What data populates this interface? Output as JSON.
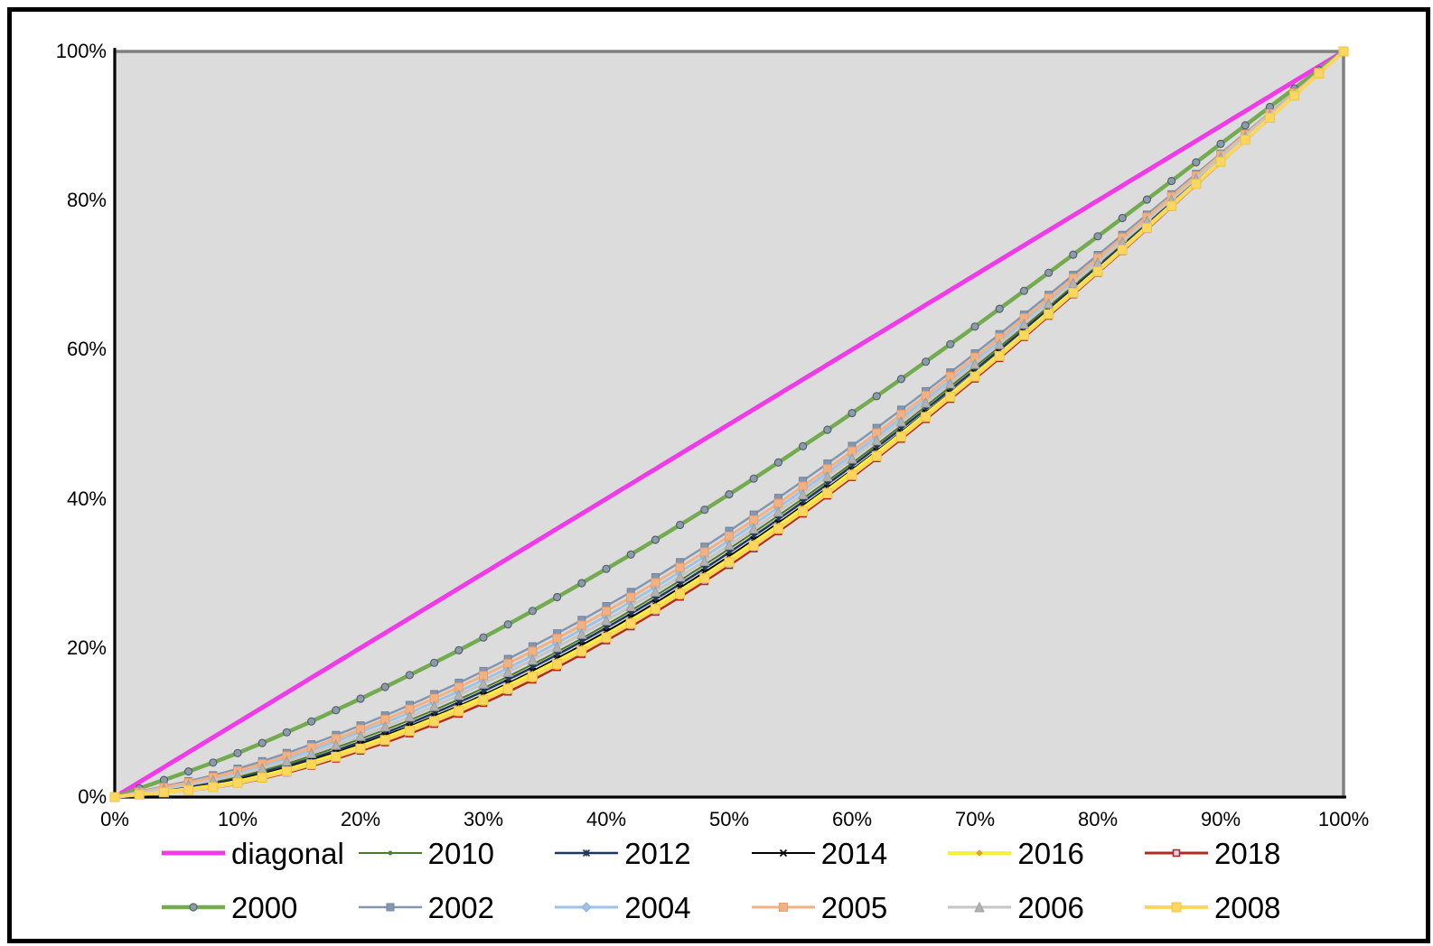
{
  "figure": {
    "background": "#ffffff",
    "outer_border_color": "#000000",
    "plot_background": "#DCDCDC",
    "plot_border_color": "#808080",
    "axis_line_color": "#000000"
  },
  "axes": {
    "x_tick_labels": [
      "0%",
      "10%",
      "20%",
      "30%",
      "40%",
      "50%",
      "60%",
      "70%",
      "80%",
      "90%",
      "100%"
    ],
    "y_tick_labels": [
      "0%",
      "20%",
      "40%",
      "60%",
      "80%",
      "100%"
    ]
  },
  "chart_data": {
    "type": "line",
    "title": "",
    "xlabel": "",
    "ylabel": "",
    "xlim": [
      0,
      100
    ],
    "ylim": [
      0,
      100
    ],
    "grid": false,
    "legend_position": "bottom",
    "x": [
      0,
      10,
      20,
      30,
      40,
      50,
      60,
      70,
      80,
      90,
      100
    ],
    "series": [
      {
        "name": "diagonal",
        "color": "#F03CE8",
        "line_width": 5,
        "marker": {
          "shape": "none",
          "fill": "",
          "stroke": "",
          "size": 0
        },
        "values": [
          0,
          10,
          20,
          30,
          40,
          50,
          60,
          70,
          80,
          90,
          100
        ]
      },
      {
        "name": "2010",
        "color": "#4E7A28",
        "line_width": 2,
        "marker": {
          "shape": "dot",
          "fill": "#538135",
          "stroke": "#3E5E1E",
          "size": 5
        },
        "values": [
          0,
          2.7,
          7.8,
          14.6,
          23.1,
          33.3,
          44.8,
          57.7,
          71.4,
          85.7,
          100
        ]
      },
      {
        "name": "2012",
        "color": "#20375C",
        "line_width": 2.5,
        "marker": {
          "shape": "star",
          "fill": "#20375C",
          "stroke": "#20375C",
          "size": 7
        },
        "values": [
          0,
          2.5,
          7.4,
          14.2,
          22.7,
          32.8,
          44.4,
          57.3,
          71.1,
          85.5,
          100
        ]
      },
      {
        "name": "2014",
        "color": "#000000",
        "line_width": 2,
        "marker": {
          "shape": "x",
          "fill": "#000000",
          "stroke": "#000000",
          "size": 7
        },
        "values": [
          0,
          2.3,
          7.1,
          13.7,
          22.2,
          32.3,
          43.9,
          56.9,
          70.9,
          85.4,
          100
        ]
      },
      {
        "name": "2016",
        "color": "#FAEF3E",
        "line_width": 4,
        "marker": {
          "shape": "diamond",
          "fill": "#E8A33D",
          "stroke": "#D99426",
          "size": 6
        },
        "values": [
          0,
          2.1,
          6.8,
          13.4,
          21.8,
          31.9,
          43.6,
          56.7,
          70.7,
          85.3,
          100
        ]
      },
      {
        "name": "2018",
        "color": "#B02B20",
        "line_width": 3,
        "marker": {
          "shape": "square-open",
          "fill": "#C9D9F0",
          "stroke": "#B02B20",
          "size": 7
        },
        "values": [
          0,
          1.8,
          6.2,
          12.6,
          21.0,
          31.1,
          42.9,
          56.1,
          70.3,
          85.1,
          100
        ]
      },
      {
        "name": "2000",
        "color": "#74AA50",
        "line_width": 4.5,
        "marker": {
          "shape": "circle",
          "fill": "#8C9BAA",
          "stroke": "#55616E",
          "size": 8
        },
        "values": [
          0,
          5.9,
          13.2,
          21.4,
          30.6,
          40.6,
          51.5,
          63.1,
          75.2,
          87.6,
          100
        ]
      },
      {
        "name": "2002",
        "color": "#8497B0",
        "line_width": 2.5,
        "marker": {
          "shape": "square",
          "fill": "#8497B0",
          "stroke": "#73849B",
          "size": 8
        },
        "values": [
          0,
          3.8,
          9.6,
          16.9,
          25.6,
          35.7,
          47.1,
          59.5,
          72.7,
          86.3,
          100
        ]
      },
      {
        "name": "2004",
        "color": "#9DC3E6",
        "line_width": 3,
        "marker": {
          "shape": "diamond",
          "fill": "#9DC3E6",
          "stroke": "#8AB2D8",
          "size": 10
        },
        "values": [
          0,
          3.2,
          8.7,
          15.7,
          24.3,
          34.4,
          45.9,
          58.5,
          72.0,
          86.0,
          100
        ]
      },
      {
        "name": "2005",
        "color": "#F2B183",
        "line_width": 3,
        "marker": {
          "shape": "square",
          "fill": "#F2B183",
          "stroke": "#E5A071",
          "size": 9
        },
        "values": [
          0,
          3.5,
          9.1,
          16.3,
          24.9,
          35.0,
          46.4,
          59.0,
          72.3,
          86.1,
          100
        ]
      },
      {
        "name": "2006",
        "color": "#C6C6C6",
        "line_width": 3,
        "marker": {
          "shape": "triangle",
          "fill": "#B3B3B3",
          "stroke": "#9E9E9E",
          "size": 10
        },
        "values": [
          0,
          3.0,
          8.2,
          15.2,
          23.7,
          33.8,
          45.4,
          58.1,
          71.7,
          85.8,
          100
        ]
      },
      {
        "name": "2008",
        "color": "#FCD75F",
        "line_width": 4,
        "marker": {
          "shape": "square",
          "fill": "#FCD75F",
          "stroke": "#EDC44A",
          "size": 10
        },
        "values": [
          0,
          1.9,
          6.5,
          13.0,
          21.4,
          31.5,
          43.2,
          56.4,
          70.5,
          85.2,
          100
        ]
      }
    ]
  },
  "legend": {
    "rows": [
      [
        "diagonal",
        "2010",
        "2012",
        "2014",
        "2016",
        "2018"
      ],
      [
        "2000",
        "2002",
        "2004",
        "2005",
        "2006",
        "2008"
      ]
    ]
  }
}
